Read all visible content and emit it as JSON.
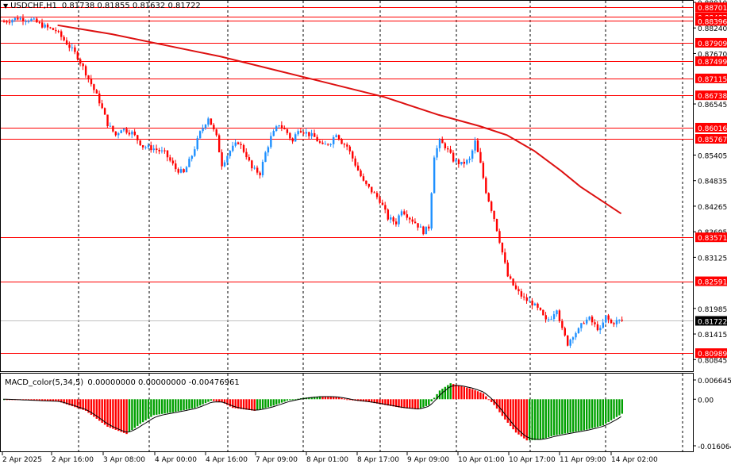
{
  "header": {
    "symbol_tf": "USDCHF,H1",
    "ohlc": "0.81738 0.81855 0.81632 0.81722"
  },
  "macd": {
    "label": "MACD_color(5,34,5)",
    "values": "0.00000000 0.00000000 -0.00476961",
    "axis_labels": [
      "0.0066454",
      "0.00",
      "-0.0160646"
    ]
  },
  "colors": {
    "bull_candle": "#1e90ff",
    "bear_candle": "#ff0000",
    "level_line": "#ff0000",
    "ma_line": "#dd1111",
    "price_badge_bg": "#ff0000",
    "current_price_badge_bg": "#000000",
    "histogram_up": "#00a000",
    "histogram_down": "#ff0000",
    "signal_line": "#000000"
  },
  "price_axis": {
    "gray_labels": [
      "0.88810",
      "0.88240",
      "0.87670",
      "0.86545",
      "0.85405",
      "0.84835",
      "0.84265",
      "0.83695",
      "0.83125",
      "0.81985",
      "0.81415",
      "0.80845"
    ],
    "level_badges": [
      "0.88701",
      "0.88483",
      "0.88396",
      "0.87909",
      "0.87499",
      "0.87115",
      "0.86738",
      "0.86016",
      "0.85767",
      "0.83571",
      "0.82591",
      "0.80989"
    ],
    "current_price": "0.81722"
  },
  "time_axis": {
    "labels": [
      "2 Apr 2025",
      "2 Apr 16:00",
      "3 Apr 08:00",
      "4 Apr 00:00",
      "4 Apr 16:00",
      "7 Apr 09:00",
      "8 Apr 01:00",
      "8 Apr 17:00",
      "9 Apr 09:00",
      "10 Apr 01:00",
      "10 Apr 17:00",
      "11 Apr 09:00",
      "14 Apr 02:00"
    ]
  },
  "chart_data": {
    "type": "candlestick",
    "symbol": "USDCHF",
    "timeframe": "H1",
    "price_range": [
      0.8062,
      0.8881
    ],
    "close_path": [
      [
        0,
        0.8838
      ],
      [
        5,
        0.8846
      ],
      [
        10,
        0.8842
      ],
      [
        16,
        0.8824
      ],
      [
        19,
        0.8818
      ],
      [
        23,
        0.879
      ],
      [
        27,
        0.876
      ],
      [
        31,
        0.8712
      ],
      [
        35,
        0.866
      ],
      [
        38,
        0.861
      ],
      [
        41,
        0.8585
      ],
      [
        43,
        0.86
      ],
      [
        47,
        0.859
      ],
      [
        51,
        0.856
      ],
      [
        55,
        0.8555
      ],
      [
        59,
        0.8545
      ],
      [
        63,
        0.851
      ],
      [
        66,
        0.85
      ],
      [
        69,
        0.854
      ],
      [
        72,
        0.859
      ],
      [
        75,
        0.8625
      ],
      [
        78,
        0.858
      ],
      [
        80,
        0.852
      ],
      [
        83,
        0.855
      ],
      [
        86,
        0.857
      ],
      [
        89,
        0.854
      ],
      [
        91,
        0.851
      ],
      [
        94,
        0.85
      ],
      [
        96,
        0.8545
      ],
      [
        98,
        0.858
      ],
      [
        101,
        0.861
      ],
      [
        104,
        0.859
      ],
      [
        106,
        0.857
      ],
      [
        108,
        0.86
      ],
      [
        111,
        0.859
      ],
      [
        114,
        0.858
      ],
      [
        117,
        0.856
      ],
      [
        120,
        0.857
      ],
      [
        122,
        0.859
      ],
      [
        124,
        0.857
      ],
      [
        126,
        0.856
      ],
      [
        129,
        0.852
      ],
      [
        132,
        0.848
      ],
      [
        135,
        0.846
      ],
      [
        138,
        0.844
      ],
      [
        141,
        0.84
      ],
      [
        144,
        0.839
      ],
      [
        146,
        0.842
      ],
      [
        149,
        0.84
      ],
      [
        151,
        0.839
      ],
      [
        154,
        0.837
      ],
      [
        156,
        0.838
      ],
      [
        158,
        0.854
      ],
      [
        160,
        0.857
      ],
      [
        162,
        0.856
      ],
      [
        165,
        0.853
      ],
      [
        168,
        0.852
      ],
      [
        171,
        0.853
      ],
      [
        173,
        0.857
      ],
      [
        175,
        0.852
      ],
      [
        177,
        0.846
      ],
      [
        180,
        0.84
      ],
      [
        182,
        0.835
      ],
      [
        185,
        0.827
      ],
      [
        188,
        0.824
      ],
      [
        191,
        0.822
      ],
      [
        194,
        0.821
      ],
      [
        197,
        0.819
      ],
      [
        199,
        0.817
      ],
      [
        201,
        0.818
      ],
      [
        203,
        0.82
      ],
      [
        205,
        0.815
      ],
      [
        207,
        0.812
      ],
      [
        209,
        0.814
      ],
      [
        211,
        0.815
      ],
      [
        213,
        0.817
      ],
      [
        215,
        0.8175
      ],
      [
        217,
        0.816
      ],
      [
        219,
        0.815
      ],
      [
        221,
        0.818
      ],
      [
        223,
        0.8165
      ],
      [
        225,
        0.817
      ],
      [
        227,
        0.8172
      ]
    ],
    "moving_average": [
      [
        20,
        0.883
      ],
      [
        40,
        0.881
      ],
      [
        60,
        0.8785
      ],
      [
        80,
        0.876
      ],
      [
        100,
        0.873
      ],
      [
        120,
        0.87
      ],
      [
        140,
        0.867
      ],
      [
        160,
        0.863
      ],
      [
        175,
        0.8605
      ],
      [
        185,
        0.8585
      ],
      [
        195,
        0.855
      ],
      [
        205,
        0.8505
      ],
      [
        212,
        0.847
      ],
      [
        227,
        0.841
      ]
    ],
    "levels": [
      0.88701,
      0.88483,
      0.88396,
      0.87909,
      0.87499,
      0.87115,
      0.86738,
      0.86016,
      0.85767,
      0.83571,
      0.82591,
      0.80989
    ],
    "current_price": 0.81722,
    "macd_range": [
      -0.0160646,
      0.0066454
    ],
    "macd_histogram_path": [
      [
        0,
        0.0
      ],
      [
        20,
        -0.0008
      ],
      [
        30,
        -0.004
      ],
      [
        38,
        -0.0095
      ],
      [
        45,
        -0.012
      ],
      [
        50,
        -0.0085
      ],
      [
        55,
        -0.0055
      ],
      [
        62,
        -0.0045
      ],
      [
        70,
        -0.003
      ],
      [
        76,
        -0.0005
      ],
      [
        80,
        -0.001
      ],
      [
        84,
        -0.003
      ],
      [
        92,
        -0.004
      ],
      [
        98,
        -0.0025
      ],
      [
        104,
        -0.0005
      ],
      [
        110,
        0.0005
      ],
      [
        116,
        0.001
      ],
      [
        122,
        0.0008
      ],
      [
        128,
        -0.0004
      ],
      [
        134,
        -0.001
      ],
      [
        140,
        -0.002
      ],
      [
        146,
        -0.003
      ],
      [
        152,
        -0.0035
      ],
      [
        156,
        -0.002
      ],
      [
        160,
        0.003
      ],
      [
        164,
        0.0055
      ],
      [
        168,
        0.0045
      ],
      [
        172,
        0.0035
      ],
      [
        176,
        0.002
      ],
      [
        180,
        -0.002
      ],
      [
        184,
        -0.007
      ],
      [
        188,
        -0.0115
      ],
      [
        192,
        -0.0142
      ],
      [
        197,
        -0.014
      ],
      [
        202,
        -0.0125
      ],
      [
        208,
        -0.0115
      ],
      [
        214,
        -0.0105
      ],
      [
        220,
        -0.009
      ],
      [
        227,
        -0.005
      ]
    ]
  }
}
